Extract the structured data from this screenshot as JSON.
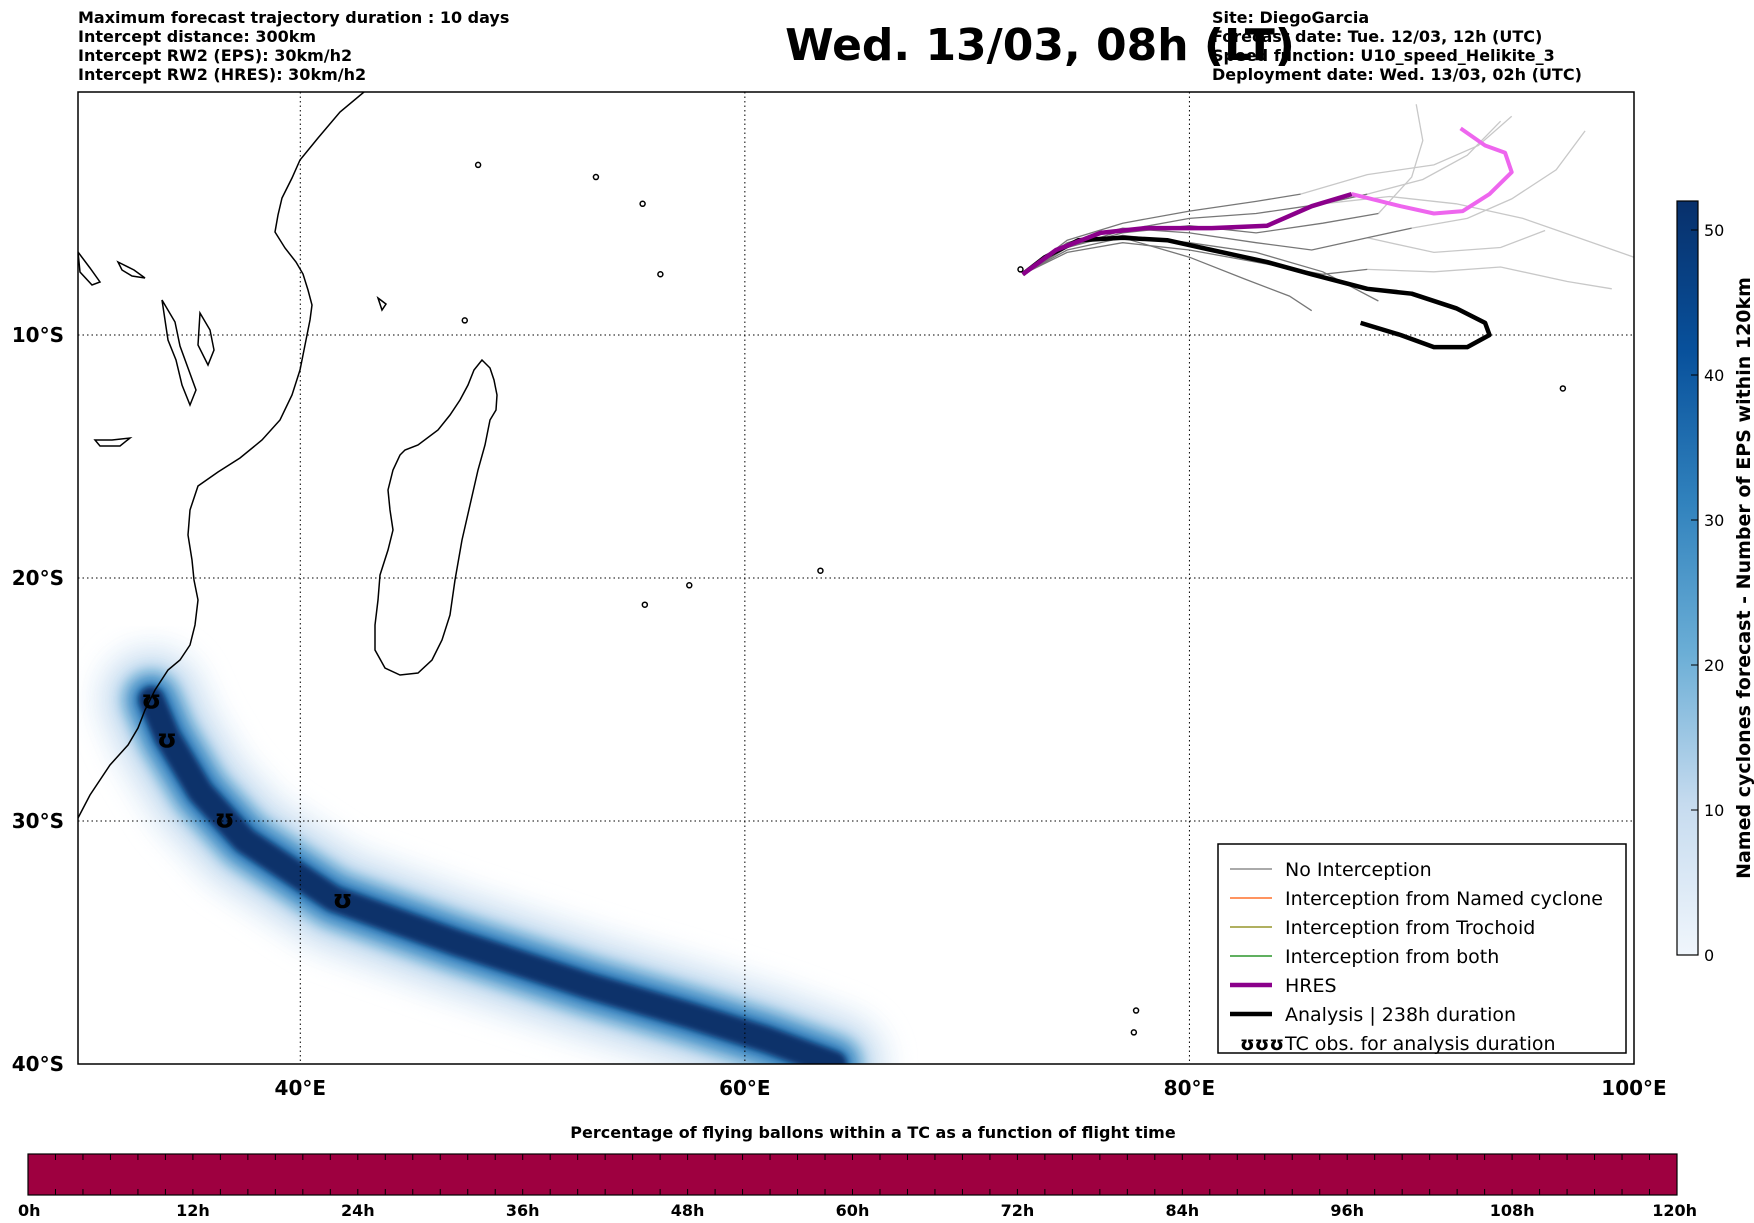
{
  "header": {
    "left": [
      "Maximum forecast trajectory duration : 10 days",
      "Intercept distance: 300km",
      "Intercept RW2 (EPS):  30km/h2",
      "Intercept RW2 (HRES): 30km/h2"
    ],
    "title": "Wed. 13/03, 08h (LT)",
    "right": [
      "Site: DiegoGarcia",
      "Forecast date: Tue. 12/03, 12h (UTC)",
      "Speed function: U10_speed_Helikite_3",
      "Deployment date: Wed. 13/03, 02h (UTC)"
    ]
  },
  "map": {
    "lon_range": [
      30,
      100
    ],
    "lat_range": [
      0,
      -40
    ],
    "lat_ticks": [
      {
        "value": -10,
        "label": "10°S"
      },
      {
        "value": -20,
        "label": "20°S"
      },
      {
        "value": -30,
        "label": "30°S"
      },
      {
        "value": -40,
        "label": "40°S"
      }
    ],
    "lon_ticks": [
      {
        "value": 40,
        "label": "40°E"
      },
      {
        "value": 60,
        "label": "60°E"
      },
      {
        "value": 80,
        "label": "80°E"
      },
      {
        "value": 100,
        "label": "100°E"
      }
    ],
    "grid": "dotted",
    "colors": {
      "no_interception": "#777777",
      "named_cyclone": "#ff5500",
      "trochoid": "#808000",
      "both": "#008000",
      "hres": "#8b008b",
      "hres_late": "#ee66ee",
      "analysis": "#000000",
      "density_dark": "#08306b",
      "density_light": "#deebf7"
    },
    "density_track": [
      [
        33.3,
        -25.0
      ],
      [
        34.0,
        -26.5
      ],
      [
        35.5,
        -28.8
      ],
      [
        37.5,
        -30.8
      ],
      [
        41.5,
        -33.2
      ],
      [
        47.0,
        -35.0
      ],
      [
        53.0,
        -36.8
      ],
      [
        57.5,
        -38.0
      ],
      [
        61.0,
        -39.0
      ],
      [
        64.0,
        -40.0
      ]
    ],
    "tc_obs": [
      [
        33.3,
        -25.0
      ],
      [
        34.0,
        -26.6
      ],
      [
        36.6,
        -29.9
      ],
      [
        41.9,
        -33.2
      ]
    ],
    "analysis_track": [
      [
        72.5,
        -7.5
      ],
      [
        73.5,
        -6.8
      ],
      [
        75.0,
        -6.1
      ],
      [
        77.0,
        -6.0
      ],
      [
        79.0,
        -6.1
      ],
      [
        81.0,
        -6.5
      ],
      [
        83.5,
        -7.0
      ],
      [
        85.5,
        -7.5
      ],
      [
        88.0,
        -8.1
      ],
      [
        90.0,
        -8.3
      ],
      [
        92.0,
        -8.9
      ],
      [
        93.3,
        -9.5
      ],
      [
        93.5,
        -10.0
      ],
      [
        92.5,
        -10.5
      ],
      [
        91.0,
        -10.5
      ],
      [
        89.5,
        -10.0
      ],
      [
        87.7,
        -9.5
      ]
    ],
    "hres_track": [
      [
        72.5,
        -7.5
      ],
      [
        74.0,
        -6.5
      ],
      [
        76.0,
        -5.8
      ],
      [
        78.0,
        -5.6
      ],
      [
        81.0,
        -5.6
      ],
      [
        83.5,
        -5.5
      ],
      [
        85.5,
        -4.7
      ],
      [
        87.3,
        -4.2
      ]
    ],
    "hres_track_late": [
      [
        87.3,
        -4.2
      ],
      [
        89.5,
        -4.7
      ],
      [
        91.0,
        -5.0
      ],
      [
        92.3,
        -4.9
      ],
      [
        93.5,
        -4.2
      ],
      [
        94.5,
        -3.3
      ],
      [
        94.2,
        -2.5
      ],
      [
        93.3,
        -2.2
      ],
      [
        92.2,
        -1.5
      ]
    ],
    "eps_tracks_dark": [
      [
        [
          72.5,
          -7.5
        ],
        [
          74.5,
          -6.4
        ],
        [
          77,
          -5.7
        ],
        [
          80,
          -5.2
        ],
        [
          83,
          -5.0
        ],
        [
          86,
          -4.6
        ],
        [
          88,
          -4.2
        ]
      ],
      [
        [
          72.5,
          -7.5
        ],
        [
          74.5,
          -6.1
        ],
        [
          77,
          -5.4
        ],
        [
          80,
          -4.9
        ],
        [
          83,
          -4.5
        ],
        [
          85,
          -4.2
        ]
      ],
      [
        [
          72.5,
          -7.5
        ],
        [
          74.5,
          -6.6
        ],
        [
          77,
          -6.2
        ],
        [
          80,
          -6.5
        ],
        [
          83,
          -7.0
        ],
        [
          86,
          -7.5
        ],
        [
          88,
          -7.3
        ]
      ],
      [
        [
          72.5,
          -7.5
        ],
        [
          74.5,
          -6.3
        ],
        [
          77,
          -5.9
        ],
        [
          80,
          -6.2
        ],
        [
          83,
          -6.6
        ],
        [
          86,
          -7.4
        ],
        [
          88.5,
          -8.6
        ]
      ],
      [
        [
          72.5,
          -7.5
        ],
        [
          74.5,
          -6.5
        ],
        [
          77,
          -6.0
        ],
        [
          80,
          -6.8
        ],
        [
          82.5,
          -7.7
        ],
        [
          84.5,
          -8.4
        ],
        [
          85.5,
          -9.0
        ]
      ],
      [
        [
          72.5,
          -7.5
        ],
        [
          74.5,
          -6.4
        ],
        [
          77,
          -5.8
        ],
        [
          80,
          -5.5
        ],
        [
          83,
          -5.8
        ],
        [
          86,
          -5.4
        ],
        [
          88.5,
          -5.0
        ]
      ],
      [
        [
          72.5,
          -7.5
        ],
        [
          74.5,
          -6.2
        ],
        [
          77,
          -5.6
        ],
        [
          80,
          -5.8
        ],
        [
          83,
          -6.2
        ],
        [
          85.5,
          -6.5
        ],
        [
          88,
          -6.0
        ],
        [
          90,
          -5.6
        ]
      ]
    ],
    "eps_tracks_light": [
      [
        [
          85,
          -4.2
        ],
        [
          88,
          -3.4
        ],
        [
          91,
          -3.0
        ],
        [
          93,
          -2.2
        ],
        [
          94.5,
          -1.0
        ]
      ],
      [
        [
          86,
          -4.6
        ],
        [
          89,
          -4.3
        ],
        [
          92,
          -4.6
        ],
        [
          95,
          -5.2
        ],
        [
          97.5,
          -6.0
        ],
        [
          100,
          -6.8
        ]
      ],
      [
        [
          88.5,
          -5.0
        ],
        [
          90,
          -3.5
        ],
        [
          90.5,
          -2.0
        ],
        [
          90.2,
          -0.5
        ]
      ],
      [
        [
          88,
          -4.2
        ],
        [
          90.5,
          -3.6
        ],
        [
          92.5,
          -2.6
        ],
        [
          94,
          -1.2
        ]
      ],
      [
        [
          88,
          -7.3
        ],
        [
          91,
          -7.4
        ],
        [
          94,
          -7.2
        ],
        [
          97,
          -7.8
        ],
        [
          99,
          -8.1
        ]
      ],
      [
        [
          90,
          -5.6
        ],
        [
          92.5,
          -5.2
        ],
        [
          94.5,
          -4.4
        ],
        [
          96.5,
          -3.2
        ],
        [
          97.8,
          -1.6
        ]
      ],
      [
        [
          88,
          -6.0
        ],
        [
          91,
          -6.6
        ],
        [
          94,
          -6.4
        ],
        [
          96,
          -5.7
        ]
      ]
    ],
    "ocean_islands": [
      [
        55.4,
        -4.6
      ],
      [
        56.2,
        -7.5
      ],
      [
        47.4,
        -9.4
      ],
      [
        57.5,
        -20.3
      ],
      [
        55.5,
        -21.1
      ],
      [
        63.4,
        -19.7
      ],
      [
        72.4,
        -7.3
      ],
      [
        96.8,
        -12.2
      ],
      [
        77.6,
        -37.8
      ],
      [
        77.5,
        -38.7
      ],
      [
        48.0,
        -3.0
      ],
      [
        53.3,
        -3.5
      ]
    ]
  },
  "legend": {
    "items": [
      {
        "label": "No Interception",
        "style": "thin",
        "color": "#777777"
      },
      {
        "label": "Interception from Named cyclone",
        "style": "thin",
        "color": "#ff5500"
      },
      {
        "label": "Interception from Trochoid",
        "style": "thin",
        "color": "#808000"
      },
      {
        "label": "Interception from both",
        "style": "thin",
        "color": "#008000"
      },
      {
        "label": "HRES",
        "style": "thick",
        "color": "#8b008b"
      },
      {
        "label": "Analysis | 238h duration",
        "style": "thick",
        "color": "#000000"
      },
      {
        "label": "TC obs. for analysis duration",
        "style": "symbol",
        "symbol": "ʊʊʊ"
      }
    ]
  },
  "colorbar": {
    "title": "Named cyclones forecast - Number of EPS within 120km",
    "min": 0,
    "max": 52,
    "ticks": [
      0,
      10,
      20,
      30,
      40,
      50
    ]
  },
  "bottom_bar": {
    "title": "Percentage of flying ballons within a TC as a function of flight time",
    "color": "#9e0040",
    "ticks": [
      "0h",
      "12h",
      "24h",
      "36h",
      "48h",
      "60h",
      "72h",
      "84h",
      "96h",
      "108h",
      "120h"
    ]
  }
}
